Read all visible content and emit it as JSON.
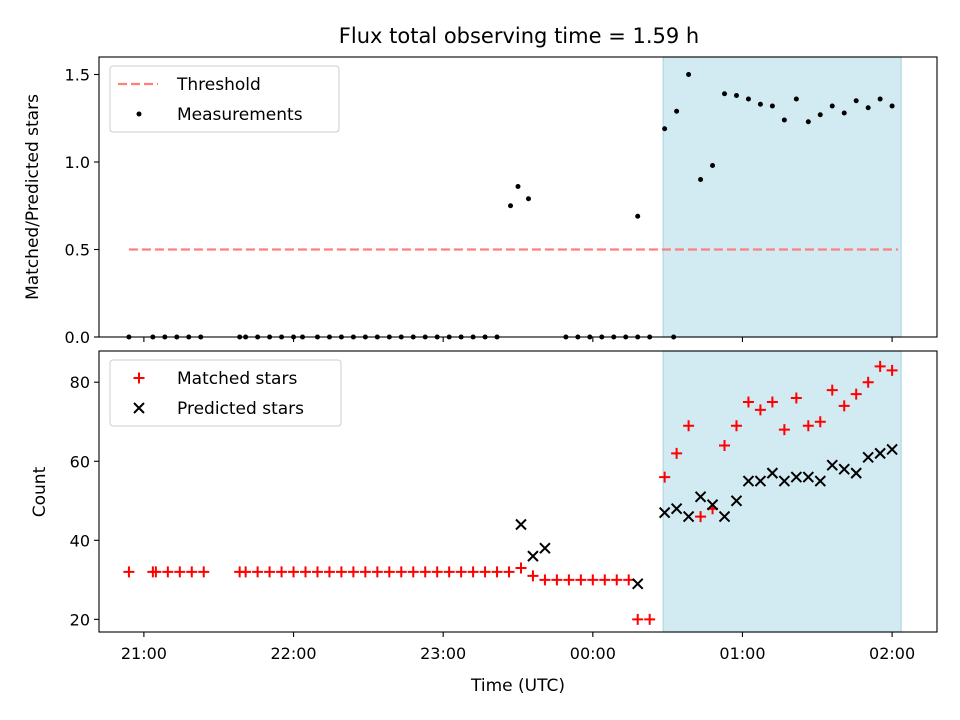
{
  "title": "Flux total observing time = 1.59 h",
  "colors": {
    "threshold": "#ff7f7f",
    "measurement": "#000000",
    "matched": "#ff0000",
    "predicted": "#000000",
    "observing_span": "#add8e6"
  },
  "chart_data": [
    {
      "type": "scatter",
      "ylabel": "Matched/Predicted stars",
      "ylim": [
        0,
        1.6
      ],
      "yticks": [
        0,
        0.5,
        1.0,
        1.5
      ],
      "ytick_labels": [
        "0.0",
        "0.5",
        "1.0",
        "1.5"
      ],
      "xlim": [
        -0.3,
        5.3
      ],
      "xticks": [
        0,
        1,
        2,
        3,
        4,
        5
      ],
      "x_unit": "hours since 21:00 UTC",
      "shaded_span": [
        3.47,
        5.06
      ],
      "legend": {
        "position": "upper-left",
        "entries": [
          "Threshold",
          "Measurements"
        ]
      },
      "series": [
        {
          "name": "Threshold",
          "kind": "line",
          "style": "dashed",
          "x": [
            -0.1,
            5.04
          ],
          "y": [
            0.5,
            0.5
          ]
        },
        {
          "name": "Measurements",
          "kind": "points",
          "marker": "dot",
          "x": [
            -0.1,
            0.06,
            0.14,
            0.22,
            0.3,
            0.38,
            0.64,
            0.68,
            0.76,
            0.84,
            0.92,
            1.0,
            1.06,
            1.16,
            1.24,
            1.32,
            1.4,
            1.48,
            1.56,
            1.64,
            1.72,
            1.8,
            1.88,
            1.96,
            2.04,
            2.12,
            2.2,
            2.28,
            2.36,
            2.45,
            2.5,
            2.57,
            2.82,
            2.9,
            2.98,
            3.06,
            3.14,
            3.22,
            3.3,
            3.38,
            3.54,
            3.48,
            3.56,
            3.64,
            3.72,
            3.8,
            3.88,
            3.96,
            4.04,
            4.12,
            4.2,
            4.28,
            4.36,
            4.44,
            4.52,
            4.6,
            4.68,
            4.76,
            4.84,
            4.92,
            5.0
          ],
          "y": [
            0,
            0,
            0,
            0,
            0,
            0,
            0,
            0,
            0,
            0,
            0,
            0,
            0,
            0,
            0,
            0,
            0,
            0,
            0,
            0,
            0,
            0,
            0,
            0,
            0,
            0,
            0,
            0,
            0,
            0.75,
            0.86,
            0.79,
            0,
            0,
            0,
            0,
            0,
            0,
            0,
            0,
            0,
            1.19,
            1.29,
            1.5,
            0.9,
            0.98,
            1.39,
            1.38,
            1.36,
            1.33,
            1.32,
            1.24,
            1.36,
            1.23,
            1.27,
            1.32,
            1.28,
            1.35,
            1.31,
            1.36,
            1.32
          ]
        },
        {
          "name": "",
          "kind": "points",
          "marker": "dot",
          "x": [
            3.3
          ],
          "y": [
            0.69
          ]
        }
      ]
    },
    {
      "type": "scatter",
      "ylabel": "Count",
      "xlabel": "Time (UTC)",
      "ylim": [
        16.8,
        87.9
      ],
      "yticks": [
        20,
        40,
        60,
        80
      ],
      "ytick_labels": [
        "20",
        "40",
        "60",
        "80"
      ],
      "xlim": [
        -0.3,
        5.3
      ],
      "xticks": [
        0,
        1,
        2,
        3,
        4,
        5
      ],
      "xtick_labels": [
        "21:00",
        "22:00",
        "23:00",
        "00:00",
        "01:00",
        "02:00"
      ],
      "x_unit": "hours since 21:00 UTC",
      "shaded_span": [
        3.47,
        5.06
      ],
      "legend": {
        "position": "upper-left",
        "entries": [
          "Matched stars",
          "Predicted stars"
        ]
      },
      "series": [
        {
          "name": "Matched stars",
          "kind": "points",
          "marker": "plus",
          "x": [
            -0.1,
            0.06,
            0.08,
            0.16,
            0.24,
            0.32,
            0.4,
            0.64,
            0.68,
            0.76,
            0.84,
            0.92,
            1.0,
            1.08,
            1.16,
            1.24,
            1.32,
            1.4,
            1.48,
            1.56,
            1.64,
            1.72,
            1.8,
            1.88,
            1.96,
            2.04,
            2.12,
            2.2,
            2.28,
            2.36,
            2.44,
            2.52,
            2.6,
            2.68,
            2.76,
            2.84,
            2.92,
            3.0,
            3.08,
            3.16,
            3.24,
            3.3,
            3.38,
            3.48,
            3.56,
            3.64,
            3.72,
            3.8,
            3.88,
            3.96,
            4.04,
            4.12,
            4.2,
            4.28,
            4.36,
            4.44,
            4.52,
            4.6,
            4.68,
            4.76,
            4.84,
            4.92,
            5.0
          ],
          "y": [
            32,
            32,
            32,
            32,
            32,
            32,
            32,
            32,
            32,
            32,
            32,
            32,
            32,
            32,
            32,
            32,
            32,
            32,
            32,
            32,
            32,
            32,
            32,
            32,
            32,
            32,
            32,
            32,
            32,
            32,
            32,
            33,
            31,
            30,
            30,
            30,
            30,
            30,
            30,
            30,
            30,
            20,
            20,
            56,
            62,
            69,
            46,
            48,
            64,
            69,
            75,
            73,
            75,
            68,
            76,
            69,
            70,
            78,
            74,
            77,
            80,
            84,
            83
          ]
        },
        {
          "name": "Predicted stars",
          "kind": "points",
          "marker": "cross",
          "x": [
            2.52,
            2.6,
            2.68,
            3.3,
            3.48,
            3.56,
            3.64,
            3.72,
            3.8,
            3.88,
            3.96,
            4.04,
            4.12,
            4.2,
            4.28,
            4.36,
            4.44,
            4.52,
            4.6,
            4.68,
            4.76,
            4.84,
            4.92,
            5.0
          ],
          "y": [
            44,
            36,
            38,
            29,
            47,
            48,
            46,
            51,
            49,
            46,
            50,
            55,
            55,
            57,
            55,
            56,
            56,
            55,
            59,
            58,
            57,
            61,
            62,
            63
          ]
        }
      ]
    }
  ]
}
